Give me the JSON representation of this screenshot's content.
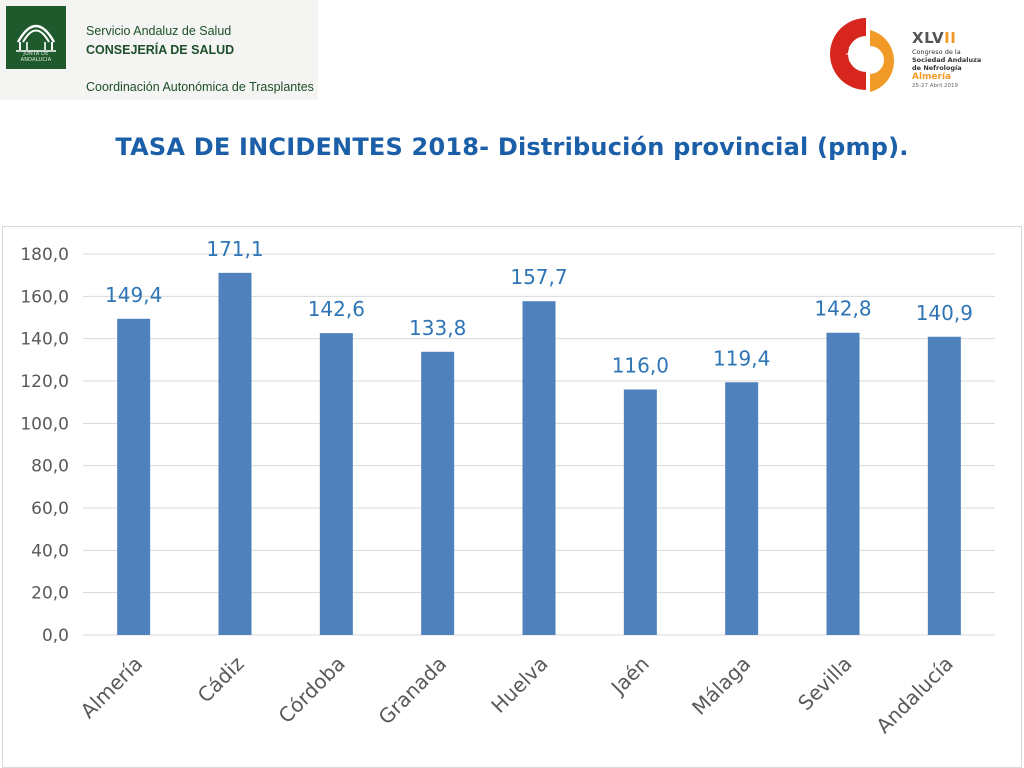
{
  "header": {
    "logo_text": "JUNTA DE ANDALUCIA",
    "org_line1": "Servicio Andaluz de Salud",
    "org_line2": "CONSEJERÍA DE SALUD",
    "org_line3": "Coordinación Autonómica de Trasplantes"
  },
  "congress": {
    "roman_prefix": "XLV",
    "roman_suffix": "II",
    "line1": "Congreso de la",
    "line2": "Sociedad Andaluza",
    "line3": "de Nefrología",
    "city": "Almería",
    "dates": "25-27 Abril 2019"
  },
  "title": "TASA DE INCIDENTES 2018- Distribución provincial (pmp).",
  "colors": {
    "bar": "#4f81bd",
    "data_label": "#2e75b6",
    "title": "#1a5fa8",
    "gridline": "#d9d9d9"
  },
  "chart_data": {
    "type": "bar",
    "title": "",
    "xlabel": "",
    "ylabel": "",
    "categories": [
      "Almería",
      "Cádiz",
      "Córdoba",
      "Granada",
      "Huelva",
      "Jaén",
      "Málaga",
      "Sevilla",
      "Andalucía"
    ],
    "values": [
      149.4,
      171.1,
      142.6,
      133.8,
      157.7,
      116.0,
      119.4,
      142.8,
      140.9
    ],
    "data_labels": [
      "149,4",
      "171,1",
      "142,6",
      "133,8",
      "157,7",
      "116,0",
      "119,4",
      "142,8",
      "140,9"
    ],
    "ylim": [
      0,
      180
    ],
    "yticks": [
      0,
      20,
      40,
      60,
      80,
      100,
      120,
      140,
      160,
      180
    ],
    "ytick_labels": [
      "0,0",
      "20,0",
      "40,0",
      "60,0",
      "80,0",
      "100,0",
      "120,0",
      "140,0",
      "160,0",
      "180,0"
    ],
    "grid": true,
    "legend": "none"
  }
}
